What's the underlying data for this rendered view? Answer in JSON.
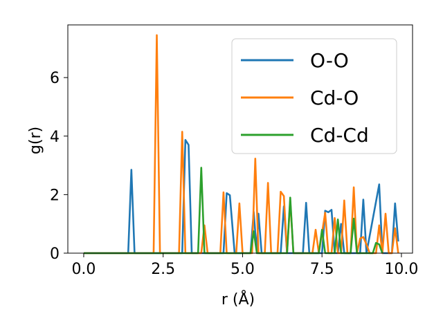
{
  "chart_data": {
    "type": "line",
    "xlabel": "r (Å)",
    "ylabel": "g(r)",
    "xlim": [
      -0.5,
      10.35
    ],
    "ylim": [
      0,
      7.8
    ],
    "x_ticks": [
      0.0,
      2.5,
      5.0,
      7.5,
      10.0
    ],
    "x_tick_labels": [
      "0.0",
      "2.5",
      "5.0",
      "7.5",
      "10.0"
    ],
    "y_ticks": [
      0,
      2,
      4,
      6
    ],
    "y_tick_labels": [
      "0",
      "2",
      "4",
      "6"
    ],
    "grid": false,
    "legend_position": "top-right",
    "series": [
      {
        "name": "O-O",
        "color": "#1f77b4",
        "points": [
          [
            0.0,
            0
          ],
          [
            1.4,
            0
          ],
          [
            1.5,
            2.85
          ],
          [
            1.6,
            0
          ],
          [
            3.1,
            0
          ],
          [
            3.2,
            3.87
          ],
          [
            3.3,
            3.7
          ],
          [
            3.4,
            0
          ],
          [
            4.4,
            0
          ],
          [
            4.5,
            2.05
          ],
          [
            4.6,
            1.98
          ],
          [
            4.75,
            0
          ],
          [
            5.25,
            0
          ],
          [
            5.35,
            1.42
          ],
          [
            5.45,
            0
          ],
          [
            5.5,
            1.35
          ],
          [
            5.6,
            0
          ],
          [
            6.2,
            0
          ],
          [
            6.3,
            1.6
          ],
          [
            6.4,
            0
          ],
          [
            6.9,
            0
          ],
          [
            7.0,
            1.72
          ],
          [
            7.1,
            0
          ],
          [
            7.5,
            0
          ],
          [
            7.6,
            1.45
          ],
          [
            7.7,
            1.4
          ],
          [
            7.8,
            1.48
          ],
          [
            7.9,
            0
          ],
          [
            8.0,
            0
          ],
          [
            8.1,
            1.0
          ],
          [
            8.2,
            0
          ],
          [
            8.7,
            0
          ],
          [
            8.8,
            1.83
          ],
          [
            8.9,
            0
          ],
          [
            9.3,
            2.35
          ],
          [
            9.4,
            0
          ],
          [
            9.7,
            0
          ],
          [
            9.8,
            1.7
          ],
          [
            9.9,
            0.4
          ]
        ]
      },
      {
        "name": "Cd-O",
        "color": "#ff7f0e",
        "points": [
          [
            0.0,
            0
          ],
          [
            2.2,
            0
          ],
          [
            2.3,
            7.45
          ],
          [
            2.4,
            0
          ],
          [
            3.0,
            0
          ],
          [
            3.1,
            4.15
          ],
          [
            3.2,
            0
          ],
          [
            3.7,
            0
          ],
          [
            3.8,
            0.95
          ],
          [
            3.9,
            0
          ],
          [
            4.3,
            0
          ],
          [
            4.4,
            2.08
          ],
          [
            4.5,
            0
          ],
          [
            4.8,
            0
          ],
          [
            4.9,
            1.7
          ],
          [
            5.0,
            0
          ],
          [
            5.3,
            0
          ],
          [
            5.4,
            3.23
          ],
          [
            5.5,
            0
          ],
          [
            5.7,
            0
          ],
          [
            5.8,
            2.4
          ],
          [
            5.9,
            0
          ],
          [
            6.1,
            0
          ],
          [
            6.2,
            2.1
          ],
          [
            6.3,
            1.95
          ],
          [
            6.4,
            0
          ],
          [
            6.5,
            1.8
          ],
          [
            6.6,
            0
          ],
          [
            7.2,
            0
          ],
          [
            7.3,
            0.8
          ],
          [
            7.4,
            0
          ],
          [
            7.6,
            1.38
          ],
          [
            7.7,
            0
          ],
          [
            7.8,
            0
          ],
          [
            7.9,
            1.2
          ],
          [
            8.0,
            0
          ],
          [
            8.1,
            0
          ],
          [
            8.2,
            1.8
          ],
          [
            8.3,
            0
          ],
          [
            8.4,
            0
          ],
          [
            8.5,
            2.25
          ],
          [
            8.6,
            0
          ],
          [
            8.7,
            0.5
          ],
          [
            8.8,
            0.55
          ],
          [
            8.9,
            0.3
          ],
          [
            9.0,
            0
          ],
          [
            9.2,
            0
          ],
          [
            9.3,
            0.95
          ],
          [
            9.4,
            0
          ],
          [
            9.5,
            1.35
          ],
          [
            9.6,
            0
          ],
          [
            9.7,
            0
          ],
          [
            9.8,
            0.85
          ],
          [
            9.9,
            0
          ]
        ]
      },
      {
        "name": "Cd-Cd",
        "color": "#2ca02c",
        "points": [
          [
            0.0,
            0
          ],
          [
            3.6,
            0
          ],
          [
            3.7,
            2.92
          ],
          [
            3.8,
            0
          ],
          [
            5.25,
            0
          ],
          [
            5.35,
            0.75
          ],
          [
            5.45,
            0
          ],
          [
            6.4,
            0
          ],
          [
            6.5,
            1.9
          ],
          [
            6.6,
            0
          ],
          [
            7.4,
            0
          ],
          [
            7.5,
            0.8
          ],
          [
            7.6,
            0
          ],
          [
            7.9,
            0
          ],
          [
            8.0,
            1.15
          ],
          [
            8.1,
            0
          ],
          [
            8.4,
            0
          ],
          [
            8.5,
            1.18
          ],
          [
            8.6,
            0
          ],
          [
            9.1,
            0
          ],
          [
            9.2,
            0.35
          ],
          [
            9.3,
            0.3
          ],
          [
            9.4,
            0
          ]
        ]
      }
    ]
  }
}
